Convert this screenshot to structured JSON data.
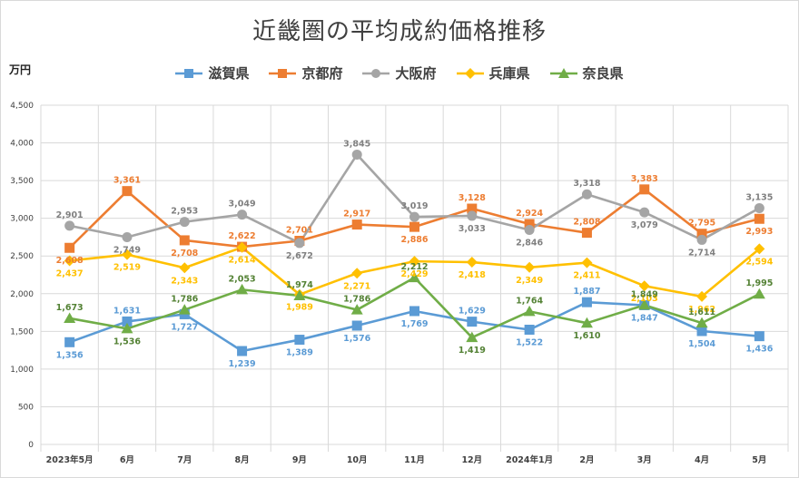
{
  "chart_data": {
    "type": "line",
    "title": "近畿圏の平均成約価格推移",
    "ylabel": "万円",
    "ylim": [
      0,
      4500
    ],
    "yticks": [
      "0",
      "500",
      "1,000",
      "1,500",
      "2,000",
      "2,500",
      "3,000",
      "3,500",
      "4,000",
      "4,500"
    ],
    "categories": [
      "2023年5月",
      "6月",
      "7月",
      "8月",
      "9月",
      "10月",
      "11月",
      "12月",
      "2024年1月",
      "2月",
      "3月",
      "4月",
      "5月"
    ],
    "grid": true,
    "legend_position": "top",
    "series": [
      {
        "name": "滋賀県",
        "color": "#5b9bd5",
        "marker": "square",
        "values": [
          1356,
          1631,
          1727,
          1239,
          1389,
          1576,
          1769,
          1629,
          1522,
          1887,
          1847,
          1504,
          1436
        ],
        "labels": [
          "1,356",
          "1,631",
          "1,727",
          "1,239",
          "1,389",
          "1,576",
          "1,769",
          "1,629",
          "1,522",
          "1,887",
          "1,847",
          "1,504",
          "1,436"
        ]
      },
      {
        "name": "京都府",
        "color": "#ed7d31",
        "marker": "square",
        "values": [
          2608,
          3361,
          2708,
          2622,
          2701,
          2917,
          2886,
          3128,
          2924,
          2808,
          3383,
          2795,
          2993
        ],
        "labels": [
          "2,608",
          "3,361",
          "2,708",
          "2,622",
          "2,701",
          "2,917",
          "2,886",
          "3,128",
          "2,924",
          "2,808",
          "3,383",
          "2,795",
          "2,993"
        ]
      },
      {
        "name": "大阪府",
        "color": "#a5a5a5",
        "marker": "circle",
        "values": [
          2901,
          2749,
          2953,
          3049,
          2672,
          3845,
          3019,
          3033,
          2846,
          3318,
          3079,
          2714,
          3135
        ],
        "labels": [
          "2,901",
          "2,749",
          "2,953",
          "3,049",
          "2,672",
          "3,845",
          "3,019",
          "3,033",
          "2,846",
          "3,318",
          "3,079",
          "2,714",
          "3,135"
        ]
      },
      {
        "name": "兵庫県",
        "color": "#ffc000",
        "marker": "diamond",
        "values": [
          2437,
          2519,
          2343,
          2614,
          1989,
          2271,
          2429,
          2418,
          2349,
          2411,
          2103,
          1962,
          2594
        ],
        "labels": [
          "2,437",
          "2,519",
          "2,343",
          "2,614",
          "1,989",
          "2,271",
          "2,429",
          "2,418",
          "2,349",
          "2,411",
          "2,103",
          "1,962",
          "2,594"
        ]
      },
      {
        "name": "奈良県",
        "color": "#70ad47",
        "marker": "triangle",
        "values": [
          1673,
          1536,
          1786,
          2053,
          1974,
          1786,
          2212,
          1419,
          1764,
          1610,
          1849,
          1611,
          1995
        ],
        "labels": [
          "1,673",
          "1,536",
          "1,786",
          "2,053",
          "1,974",
          "1,786",
          "2,212",
          "1,419",
          "1,764",
          "1,610",
          "1,849",
          "1,611",
          "1,995"
        ]
      }
    ]
  }
}
